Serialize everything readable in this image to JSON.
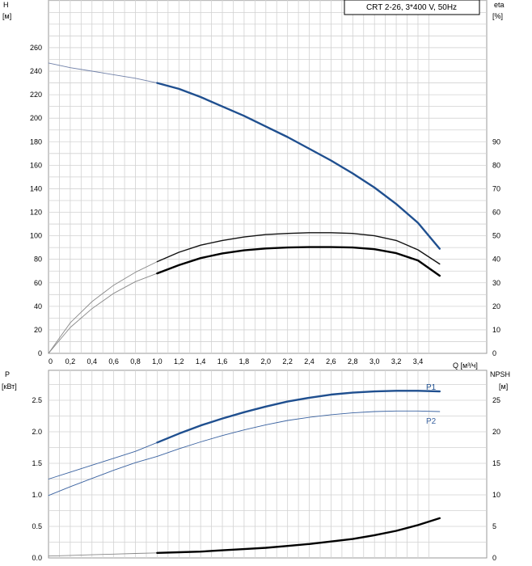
{
  "chart_data": [
    {
      "type": "line",
      "panel": "head-efficiency",
      "title": "CRT 2-26, 3*400 V, 50Hz",
      "y_left_label": [
        "H",
        "[м]"
      ],
      "y_right_label": [
        "eta",
        "[%]"
      ],
      "x_label": "Q [м³/ч]",
      "xlim": [
        0,
        3.6
      ],
      "ylim_left": [
        0,
        270
      ],
      "ylim_right": [
        0,
        135
      ],
      "x_ticks": [
        0,
        0.2,
        0.4,
        0.6,
        0.8,
        1.0,
        1.2,
        1.4,
        1.6,
        1.8,
        2.0,
        2.2,
        2.4,
        2.6,
        2.8,
        3.0,
        3.2,
        3.4
      ],
      "x_tick_labels": [
        "0",
        "0,2",
        "0,4",
        "0,6",
        "0,8",
        "1,0",
        "1,2",
        "1,4",
        "1,6",
        "1,8",
        "2,0",
        "2,2",
        "2,4",
        "2,6",
        "2,8",
        "3,0",
        "3,2",
        "3,4"
      ],
      "y_left_ticks": [
        0,
        20,
        40,
        60,
        80,
        100,
        120,
        140,
        160,
        180,
        200,
        220,
        240,
        260
      ],
      "y_right_ticks": [
        0,
        10,
        20,
        30,
        40,
        50,
        60,
        70,
        80,
        90
      ],
      "grid": true,
      "series": [
        {
          "axis": "left",
          "color": "#7080a8",
          "stroke": "thin",
          "x": [
            0,
            0.2,
            0.4,
            0.6,
            0.8,
            1.0
          ],
          "values": [
            247,
            243,
            240,
            237,
            234,
            230
          ]
        },
        {
          "axis": "left",
          "color": "#1f4f8f",
          "stroke": "thick",
          "x": [
            1.0,
            1.2,
            1.4,
            1.6,
            1.8,
            2.0,
            2.2,
            2.4,
            2.6,
            2.8,
            3.0,
            3.2,
            3.4,
            3.6
          ],
          "values": [
            230,
            225,
            218,
            210,
            202,
            193,
            184,
            174,
            164,
            153,
            141,
            127,
            111,
            89
          ]
        },
        {
          "axis": "right",
          "color": "#888888",
          "stroke": "thin",
          "x": [
            0,
            0.2,
            0.4,
            0.6,
            0.8,
            1.0
          ],
          "values": [
            0,
            13,
            22,
            29,
            34.5,
            39
          ]
        },
        {
          "axis": "right",
          "color": "#111111",
          "stroke": "medium",
          "x": [
            1.0,
            1.2,
            1.4,
            1.6,
            1.8,
            2.0,
            2.2,
            2.4,
            2.6,
            2.8,
            3.0,
            3.2,
            3.4,
            3.6
          ],
          "values": [
            39,
            43,
            46,
            48,
            49.5,
            50.5,
            51,
            51.3,
            51.3,
            51,
            50,
            48,
            44,
            38
          ]
        },
        {
          "axis": "right",
          "color": "#888888",
          "stroke": "thin",
          "x": [
            0,
            0.2,
            0.4,
            0.6,
            0.8,
            1.0
          ],
          "values": [
            0,
            11,
            19,
            25.5,
            30.5,
            34
          ]
        },
        {
          "axis": "right",
          "color": "#000000",
          "stroke": "thick",
          "x": [
            1.0,
            1.2,
            1.4,
            1.6,
            1.8,
            2.0,
            2.2,
            2.4,
            2.6,
            2.8,
            3.0,
            3.2,
            3.4,
            3.6
          ],
          "values": [
            34,
            37.5,
            40.5,
            42.5,
            43.8,
            44.6,
            45,
            45.2,
            45.2,
            45,
            44.3,
            42.6,
            39.5,
            33
          ]
        }
      ]
    },
    {
      "type": "line",
      "panel": "power-npsh",
      "y_left_label": [
        "P",
        "[кВт]"
      ],
      "y_right_label": [
        "NPSH",
        "[м]"
      ],
      "xlim": [
        0,
        3.6
      ],
      "ylim_left": [
        0,
        2.9
      ],
      "ylim_right": [
        0,
        29
      ],
      "y_left_ticks": [
        0,
        0.5,
        1.0,
        1.5,
        2.0,
        2.5
      ],
      "y_left_tick_labels": [
        "0.0",
        "0.5",
        "1.0",
        "1.5",
        "2.0",
        "2.5"
      ],
      "y_right_ticks": [
        0,
        5,
        10,
        15,
        20,
        25
      ],
      "grid": true,
      "series": [
        {
          "name": "P1",
          "axis": "left",
          "color": "#1f4f8f",
          "stroke": "thick",
          "x": [
            1.0,
            1.2,
            1.4,
            1.6,
            1.8,
            2.0,
            2.2,
            2.4,
            2.6,
            2.8,
            3.0,
            3.2,
            3.4,
            3.6
          ],
          "values": [
            1.83,
            1.97,
            2.1,
            2.21,
            2.31,
            2.4,
            2.48,
            2.54,
            2.59,
            2.62,
            2.64,
            2.65,
            2.65,
            2.64
          ]
        },
        {
          "axis": "left",
          "color": "#3a62a0",
          "stroke": "thin",
          "x": [
            0,
            0.2,
            0.4,
            0.6,
            0.8,
            1.0
          ],
          "values": [
            1.25,
            1.36,
            1.47,
            1.58,
            1.69,
            1.83
          ]
        },
        {
          "name": "P2",
          "axis": "left",
          "color": "#3a62a0",
          "stroke": "thin",
          "x": [
            0,
            0.2,
            0.4,
            0.6,
            0.8,
            1.0,
            1.2,
            1.4,
            1.6,
            1.8,
            2.0,
            2.2,
            2.4,
            2.6,
            2.8,
            3.0,
            3.2,
            3.4,
            3.6
          ],
          "values": [
            0.99,
            1.13,
            1.26,
            1.39,
            1.51,
            1.61,
            1.73,
            1.84,
            1.94,
            2.03,
            2.11,
            2.18,
            2.23,
            2.27,
            2.3,
            2.32,
            2.33,
            2.33,
            2.32
          ]
        },
        {
          "axis": "right",
          "color": "#888888",
          "stroke": "thin",
          "x": [
            0,
            0.2,
            0.4,
            0.6,
            0.8,
            1.0
          ],
          "values": [
            0.3,
            0.4,
            0.5,
            0.6,
            0.7,
            0.8
          ]
        },
        {
          "axis": "right",
          "color": "#000000",
          "stroke": "thick",
          "x": [
            1.0,
            1.2,
            1.4,
            1.6,
            1.8,
            2.0,
            2.2,
            2.4,
            2.6,
            2.8,
            3.0,
            3.2,
            3.4,
            3.6
          ],
          "values": [
            0.8,
            0.9,
            1.0,
            1.2,
            1.4,
            1.6,
            1.9,
            2.2,
            2.6,
            3.0,
            3.6,
            4.3,
            5.2,
            6.3
          ]
        }
      ]
    }
  ]
}
